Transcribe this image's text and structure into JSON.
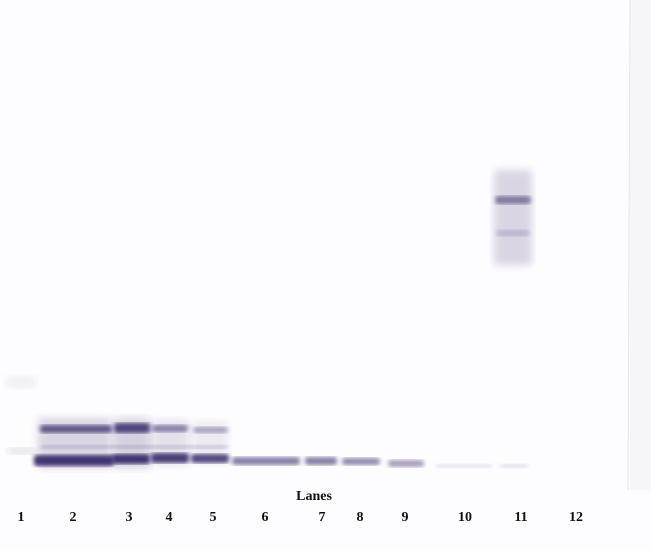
{
  "axis_title": "Lanes",
  "lanes": [
    "1",
    "2",
    "3",
    "4",
    "5",
    "6",
    "7",
    "8",
    "9",
    "10",
    "11",
    "12"
  ],
  "band_color": "#3a2c6a",
  "background_color": "#fdfcfe"
}
